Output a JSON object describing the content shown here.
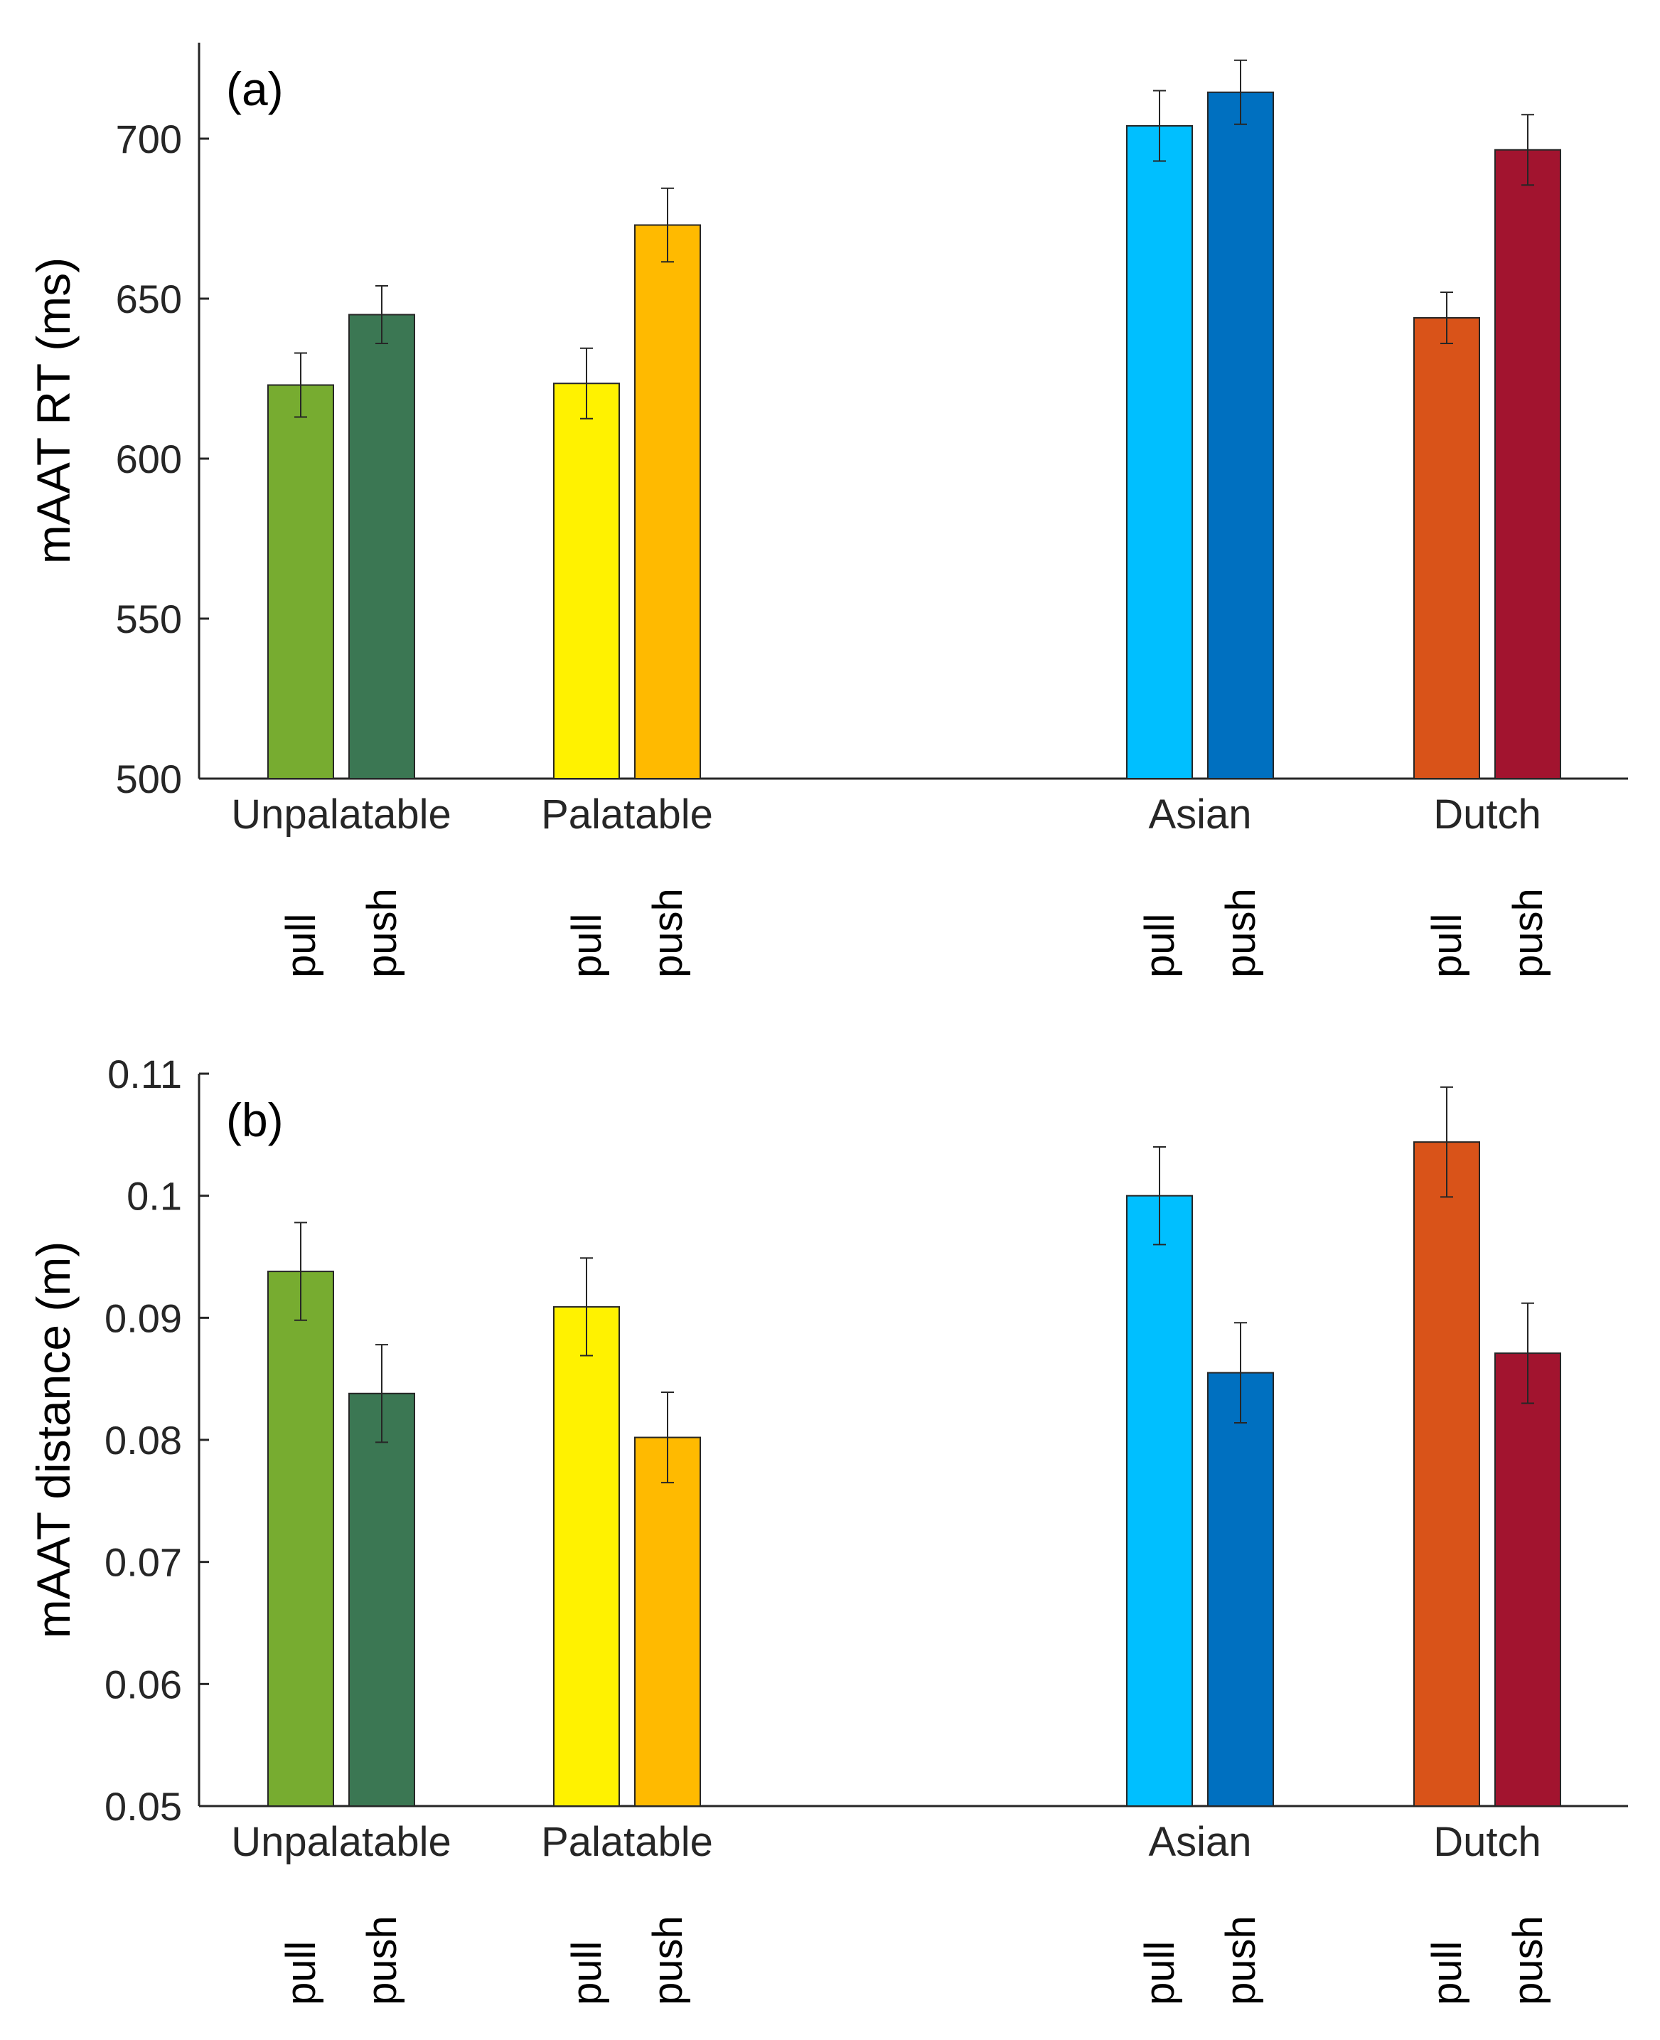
{
  "chart_data": [
    {
      "type": "bar",
      "panel_label": "(a)",
      "ylabel": "mAAT RT (ms)",
      "ylim": [
        500,
        730
      ],
      "yticks": [
        "500",
        "550",
        "600",
        "650",
        "700"
      ],
      "grid": false,
      "groups": [
        {
          "label": "Unpalatable",
          "bars": [
            {
              "label": "pull",
              "value": 623,
              "err": 10,
              "color": "#77AC30"
            },
            {
              "label": "push",
              "value": 645,
              "err": 9,
              "color": "#3B7753"
            }
          ]
        },
        {
          "label": "Palatable",
          "bars": [
            {
              "label": "pull",
              "value": 623.5,
              "err": 11,
              "color": "#FFF200"
            },
            {
              "label": "push",
              "value": 673,
              "err": 11.5,
              "color": "#FFBA00"
            }
          ]
        },
        {
          "label": "Asian",
          "bars": [
            {
              "label": "pull",
              "value": 704,
              "err": 11,
              "color": "#00BFFF"
            },
            {
              "label": "push",
              "value": 714.5,
              "err": 10,
              "color": "#0070C0"
            }
          ]
        },
        {
          "label": "Dutch",
          "bars": [
            {
              "label": "pull",
              "value": 644,
              "err": 8,
              "color": "#D95319"
            },
            {
              "label": "push",
              "value": 696.5,
              "err": 11,
              "color": "#A2142F"
            }
          ]
        }
      ]
    },
    {
      "type": "bar",
      "panel_label": "(b)",
      "ylabel": "mAAT distance (m)",
      "ylim": [
        0.05,
        0.11
      ],
      "yticks": [
        "0.05",
        "0.06",
        "0.07",
        "0.08",
        "0.09",
        "0.1",
        "0.11"
      ],
      "grid": false,
      "groups": [
        {
          "label": "Unpalatable",
          "bars": [
            {
              "label": "pull",
              "value": 0.0938,
              "err": 0.004,
              "color": "#77AC30"
            },
            {
              "label": "push",
              "value": 0.0838,
              "err": 0.004,
              "color": "#3B7753"
            }
          ]
        },
        {
          "label": "Palatable",
          "bars": [
            {
              "label": "pull",
              "value": 0.0909,
              "err": 0.004,
              "color": "#FFF200"
            },
            {
              "label": "push",
              "value": 0.0802,
              "err": 0.0037,
              "color": "#FFBA00"
            }
          ]
        },
        {
          "label": "Asian",
          "bars": [
            {
              "label": "pull",
              "value": 0.1,
              "err": 0.004,
              "color": "#00BFFF"
            },
            {
              "label": "push",
              "value": 0.0855,
              "err": 0.0041,
              "color": "#0070C0"
            }
          ]
        },
        {
          "label": "Dutch",
          "bars": [
            {
              "label": "pull",
              "value": 0.1044,
              "err": 0.0045,
              "color": "#D95319"
            },
            {
              "label": "push",
              "value": 0.0871,
              "err": 0.0041,
              "color": "#A2142F"
            }
          ]
        }
      ]
    }
  ]
}
